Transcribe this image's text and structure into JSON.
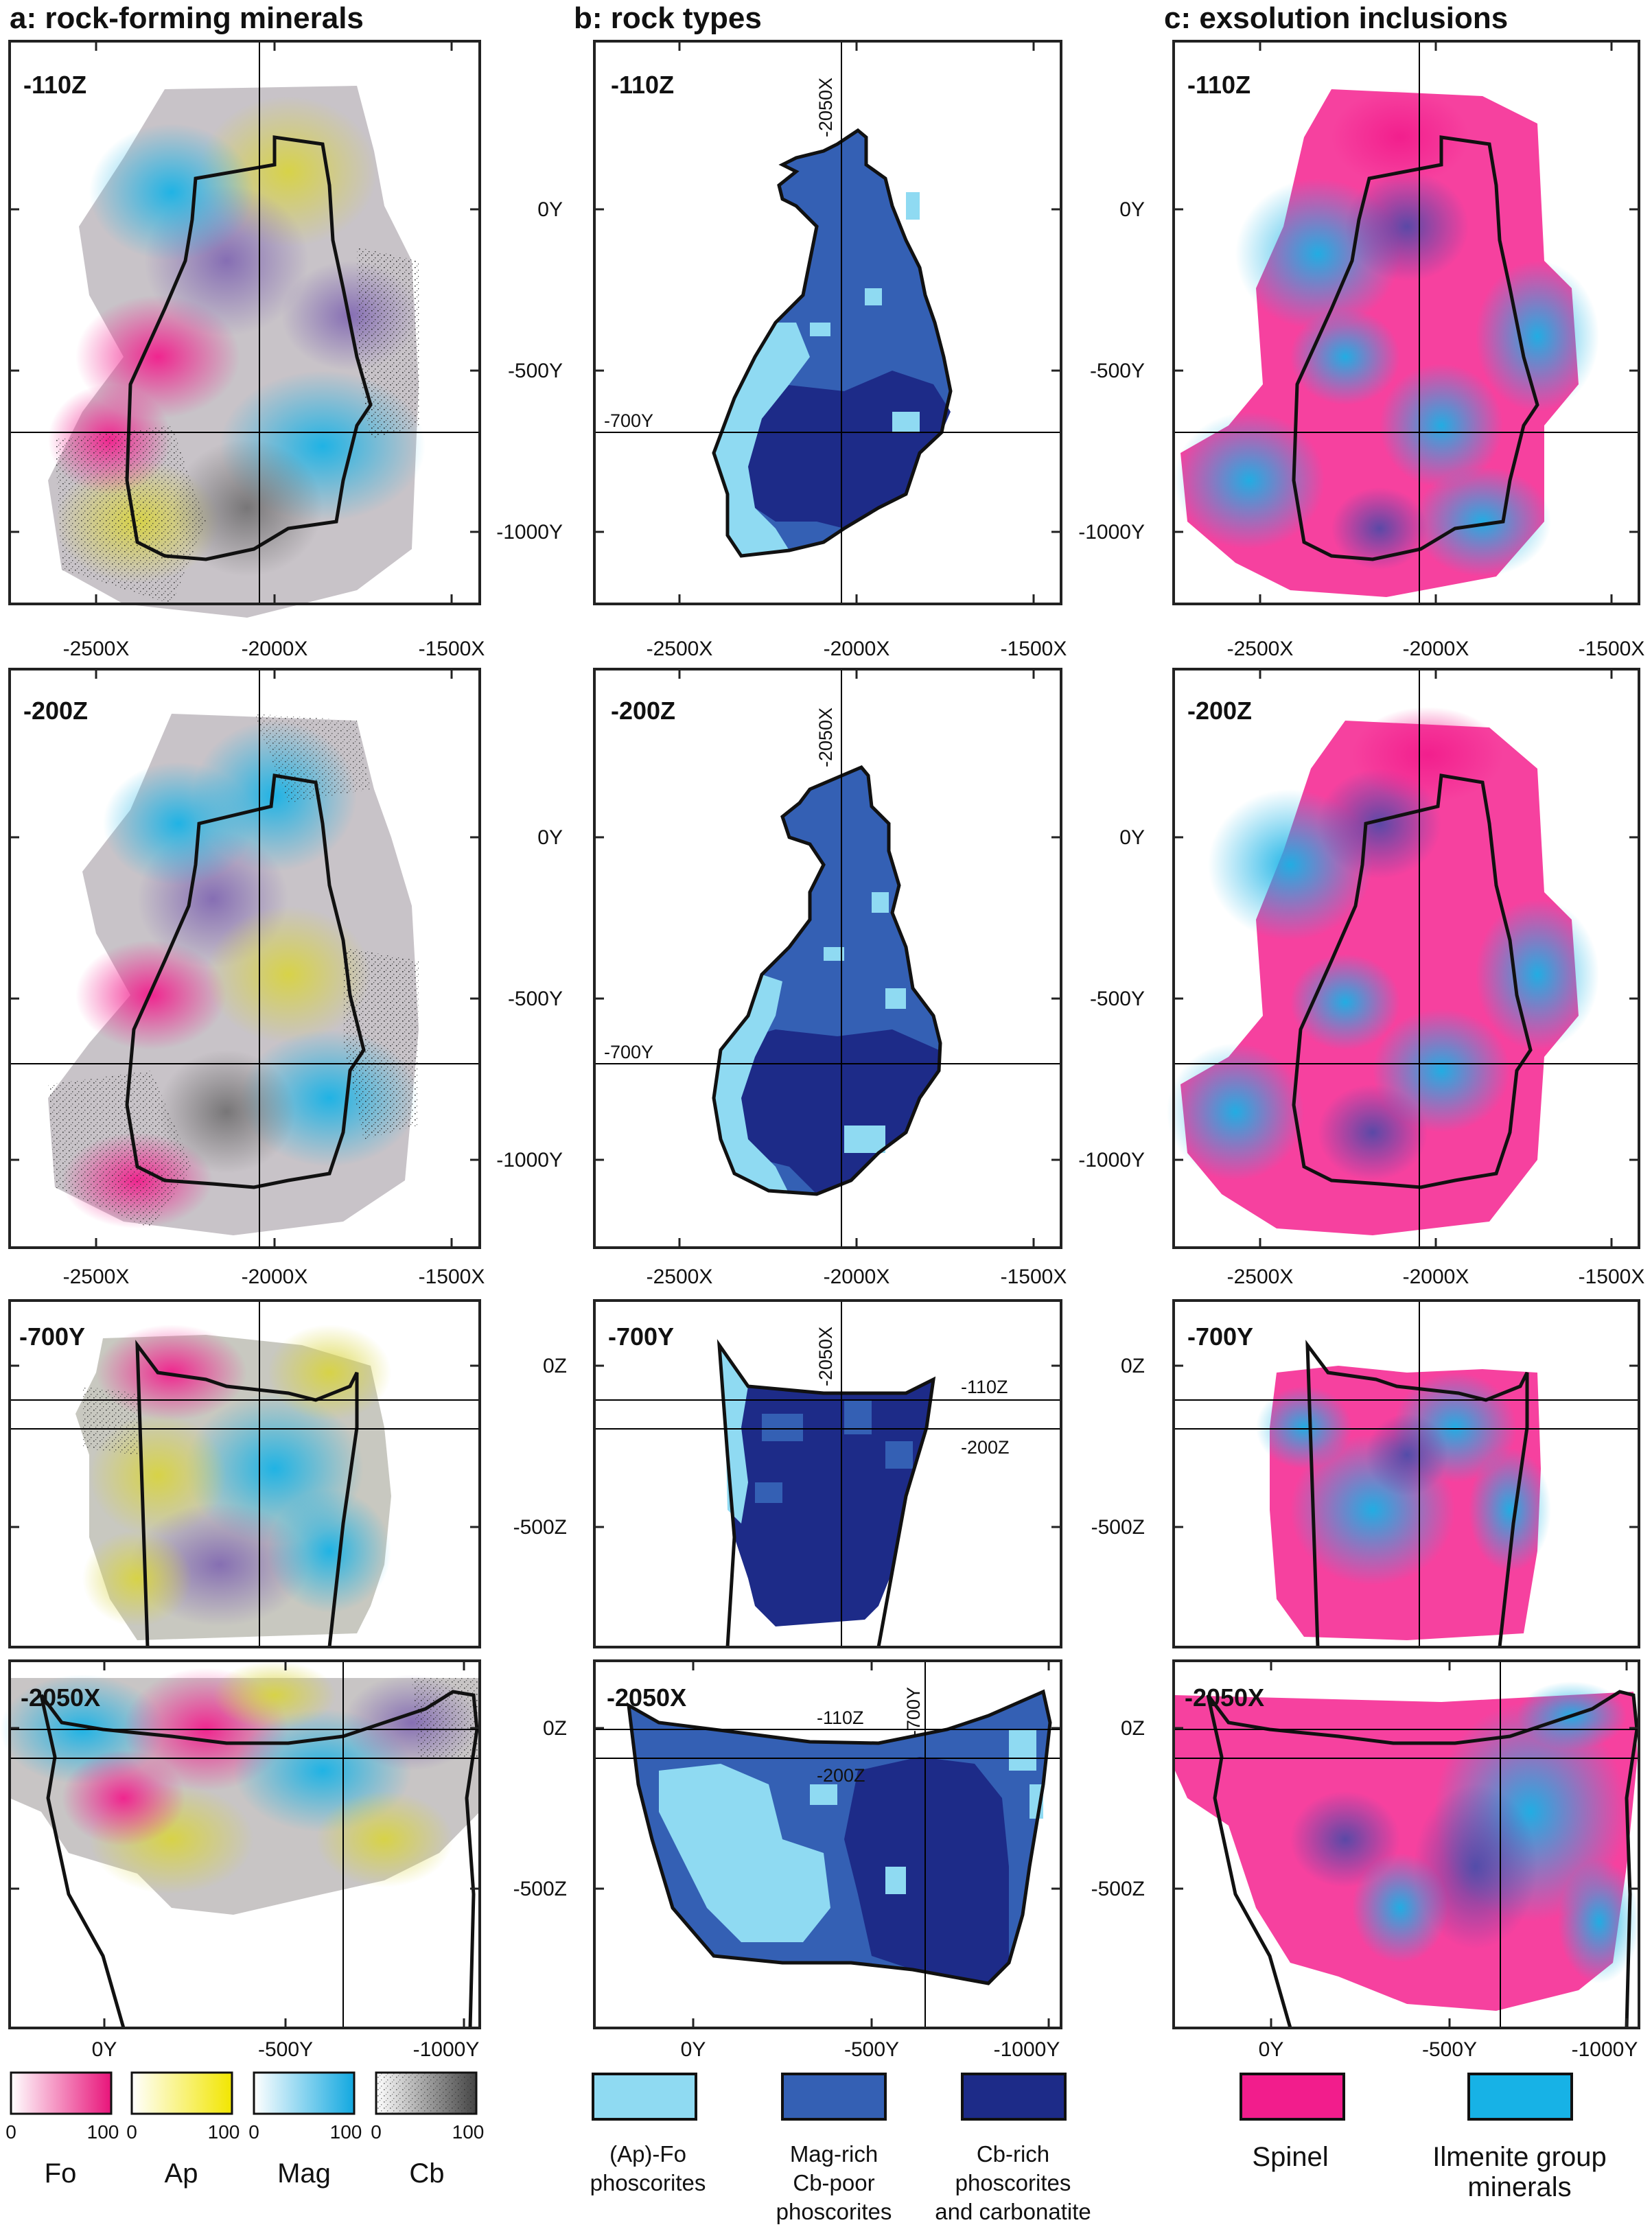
{
  "columns": [
    {
      "title": "a: rock-forming minerals"
    },
    {
      "title": "b: rock types"
    },
    {
      "title": "c: exsolution inclusions"
    }
  ],
  "rows": [
    {
      "label": "-110Z",
      "x_ticks": [
        "-2500X",
        "-2000X",
        "-1500X"
      ],
      "y_ticks": [
        "0Y",
        "-500Y",
        "-1000Y"
      ],
      "guides": [
        "-2050X",
        "-700Y"
      ]
    },
    {
      "label": "-200Z",
      "x_ticks": [
        "-2500X",
        "-2000X",
        "-1500X"
      ],
      "y_ticks": [
        "0Y",
        "-500Y",
        "-1000Y"
      ],
      "guides": [
        "-2050X",
        "-700Y"
      ]
    },
    {
      "label": "-700Y",
      "x_ticks": [],
      "y_ticks": [
        "0Z",
        "-500Z"
      ],
      "guides": [
        "-2050X",
        "-110Z",
        "-200Z"
      ]
    },
    {
      "label": "-2050X",
      "x_ticks": [
        "0Y",
        "-500Y",
        "-1000Y"
      ],
      "y_ticks": [
        "0Z",
        "-500Z"
      ],
      "guides": [
        "-700Y",
        "-110Z",
        "-200Z"
      ]
    }
  ],
  "legend": {
    "minerals": [
      {
        "name": "Fo",
        "color": "#e8147a",
        "min": "0",
        "max": "100"
      },
      {
        "name": "Ap",
        "color": "#f2e600",
        "min": "0",
        "max": "100"
      },
      {
        "name": "Mag",
        "color": "#12a8e0",
        "min": "0",
        "max": "100"
      },
      {
        "name": "Cb",
        "color": "#222222",
        "min": "0",
        "max": "100"
      }
    ],
    "rock_types": [
      {
        "lines": [
          "(Ap)-Fo",
          "phoscorites"
        ],
        "color": "#8fdaf2"
      },
      {
        "lines": [
          "Mag-rich",
          "Cb-poor",
          "phoscorites"
        ],
        "color": "#3460b4"
      },
      {
        "lines": [
          "Cb-rich",
          "phoscorites",
          "and carbonatite"
        ],
        "color": "#1d2b88"
      }
    ],
    "inclusions": [
      {
        "lines": [
          "Spinel"
        ],
        "color": "#f21d8c"
      },
      {
        "lines": [
          "Ilmenite group",
          "minerals"
        ],
        "color": "#17b2e6"
      }
    ]
  }
}
